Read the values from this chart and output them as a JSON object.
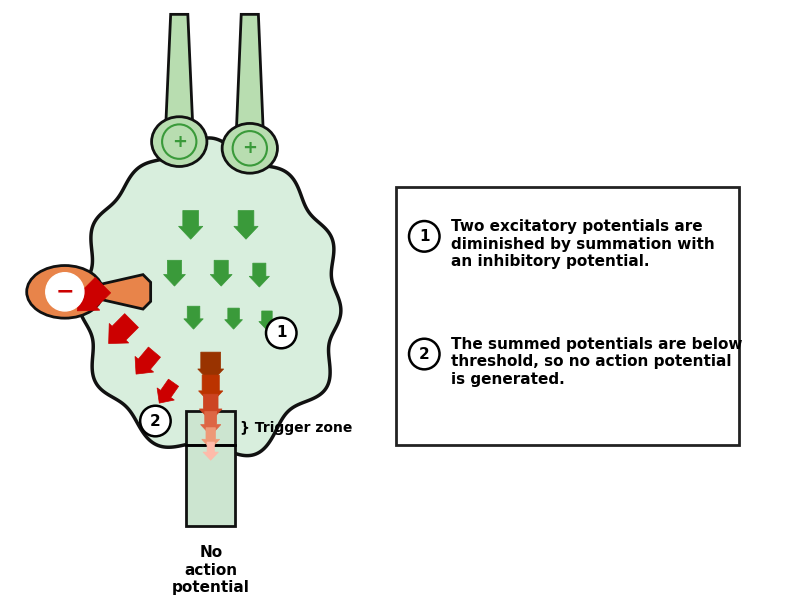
{
  "bg_color": "#ffffff",
  "neuron_body_color": "#d8eedd",
  "neuron_body_edge": "#111111",
  "excitatory_color": "#b8ddb0",
  "inhibitory_color": "#e8844a",
  "green_arrow_color": "#3a9a3a",
  "red_arrow_color": "#cc0000",
  "axon_color": "#cce5d0",
  "trigger_color": "#cce5d0",
  "text1": "Two excitatory potentials are\ndiminished by summation with\nan inhibitory potential.",
  "text2": "The summed potentials are below\nthreshold, so no action potential\nis generated.",
  "trigger_label": "} Trigger zone",
  "axon_label": "No\naction\npotential",
  "box_edge_color": "#222222"
}
